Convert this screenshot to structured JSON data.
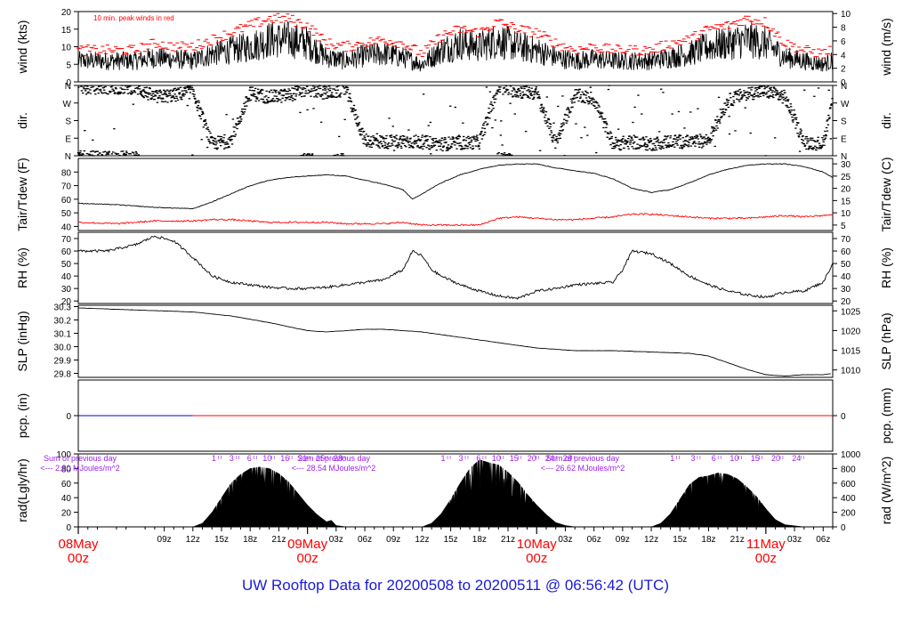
{
  "footer": {
    "title": "UW Rooftop Data for 20200508  to  20200511 @ 06:56:42  (UTC)"
  },
  "colors": {
    "axes": "#000000",
    "peak": "#ff0000",
    "annotation": "#a020f0",
    "footer": "#1a1adb",
    "date": "#ff0000",
    "precip": "#0000cc"
  },
  "x_axis": {
    "hour_ticks": [
      {
        "t": 9,
        "label": "09z"
      },
      {
        "t": 12,
        "label": "12z"
      },
      {
        "t": 15,
        "label": "15z"
      },
      {
        "t": 18,
        "label": "18z"
      },
      {
        "t": 21,
        "label": "21z"
      },
      {
        "t": 27,
        "label": "03z"
      },
      {
        "t": 30,
        "label": "06z"
      },
      {
        "t": 33,
        "label": "09z"
      },
      {
        "t": 36,
        "label": "12z"
      },
      {
        "t": 39,
        "label": "15z"
      },
      {
        "t": 42,
        "label": "18z"
      },
      {
        "t": 45,
        "label": "21z"
      },
      {
        "t": 51,
        "label": "03z"
      },
      {
        "t": 54,
        "label": "06z"
      },
      {
        "t": 57,
        "label": "09z"
      },
      {
        "t": 60,
        "label": "12z"
      },
      {
        "t": 63,
        "label": "15z"
      },
      {
        "t": 66,
        "label": "18z"
      },
      {
        "t": 69,
        "label": "21z"
      },
      {
        "t": 75,
        "label": "03z"
      },
      {
        "t": 78,
        "label": "06z"
      }
    ],
    "date_ticks": [
      {
        "t": 0,
        "day": "08May",
        "time": "00z"
      },
      {
        "t": 24,
        "day": "09May",
        "time": "00z"
      },
      {
        "t": 48,
        "day": "10May",
        "time": "00z"
      },
      {
        "t": 72,
        "day": "11May",
        "time": "00z"
      }
    ]
  },
  "panels": {
    "wind": {
      "ylabel": "wind (kts)",
      "ylabel2": "wind (m/s)",
      "note": "10 min. peak winds in red"
    },
    "dir": {
      "ylabel": "dir.",
      "ylabel2": "dir."
    },
    "temp": {
      "ylabel": "Tair/Tdew (F)",
      "ylabel2": "Tair/Tdew (C)"
    },
    "rh": {
      "ylabel": "RH (%)",
      "ylabel2": "RH (%)"
    },
    "slp": {
      "ylabel": "SLP (inHg)",
      "ylabel2": "SLP (hPa)"
    },
    "pcp": {
      "ylabel": "pcp. (in)",
      "ylabel2": "pcp. (mm)"
    },
    "rad": {
      "ylabel": "rad(Lgly/hr)",
      "ylabel2": "rad (W/m^2)"
    }
  },
  "rad_notes": [
    {
      "line1": "Sum of previous day",
      "line2": "<--- 2.80 MJoules/m^2"
    },
    {
      "line1": "Sum of previous day",
      "line2": "<--- 28.54 MJoules/m^2"
    },
    {
      "line1": "Sum of previous day",
      "line2": "<--- 26.62 MJoules/m^2"
    }
  ],
  "sun_marks": [
    {
      "day_start": 12,
      "labels": [
        "1",
        "3",
        "6",
        "10",
        "16",
        "21",
        "25",
        "28"
      ]
    },
    {
      "day_start": 36,
      "labels": [
        "1",
        "3",
        "6",
        "10",
        "15",
        "20",
        "24",
        "26"
      ]
    },
    {
      "day_start": 60,
      "labels": [
        "1",
        "3",
        "6",
        "10",
        "15",
        "20",
        "24"
      ]
    }
  ],
  "chart_data": [
    {
      "type": "line",
      "name": "wind",
      "ylim": [
        0,
        20
      ],
      "yticks": [
        0,
        5,
        10,
        15,
        20
      ],
      "yticks2": [
        0,
        2,
        4,
        6,
        8,
        10
      ],
      "x": [
        6,
        8,
        10,
        12,
        14,
        16,
        18,
        20,
        22,
        24,
        26,
        28,
        30,
        32,
        34,
        36,
        38,
        40,
        42,
        44,
        46,
        48,
        50,
        52,
        54,
        56,
        58,
        60,
        62,
        64,
        66,
        68,
        70,
        72,
        74,
        76,
        78,
        79
      ],
      "values": [
        6,
        7,
        6.5,
        6,
        8,
        9,
        10,
        12,
        12,
        11,
        7,
        6,
        7.5,
        8,
        7,
        5,
        9,
        11,
        10,
        12,
        10,
        9,
        7,
        6,
        6.5,
        6,
        6,
        6,
        7,
        8,
        10,
        11,
        12,
        11,
        7,
        6,
        5,
        6
      ],
      "peaks": [
        9,
        11,
        10,
        10,
        12,
        14,
        16,
        18,
        18,
        16,
        11,
        10,
        11,
        12,
        11,
        8,
        13,
        15,
        14,
        17,
        15,
        14,
        11,
        9,
        10,
        9,
        9,
        9,
        11,
        12,
        15,
        16,
        18,
        17,
        11,
        9,
        8,
        9
      ]
    },
    {
      "type": "scatter",
      "name": "dir",
      "yticks": [
        "N",
        "E",
        "S",
        "W",
        "N"
      ],
      "ylim": [
        0,
        360
      ],
      "x": [
        6,
        8,
        10,
        12,
        14,
        16,
        18,
        20,
        22,
        24,
        26,
        28,
        30,
        32,
        34,
        36,
        38,
        40,
        42,
        44,
        46,
        48,
        50,
        52,
        54,
        56,
        58,
        60,
        62,
        64,
        66,
        68,
        70,
        72,
        74,
        76,
        78,
        79
      ],
      "values": [
        350,
        300,
        310,
        330,
        60,
        80,
        320,
        300,
        310,
        340,
        320,
        340,
        80,
        70,
        75,
        70,
        60,
        65,
        70,
        350,
        330,
        320,
        60,
        310,
        290,
        60,
        70,
        60,
        75,
        70,
        80,
        280,
        320,
        330,
        300,
        70,
        60,
        290
      ]
    },
    {
      "type": "line",
      "name": "temp",
      "ylim": [
        37,
        90
      ],
      "yticks": [
        40,
        50,
        60,
        70,
        80
      ],
      "yticks2": [
        5,
        10,
        15,
        20,
        25,
        30
      ],
      "x": [
        0,
        4,
        8,
        12,
        14,
        16,
        18,
        20,
        22,
        24,
        26,
        28,
        30,
        32,
        34,
        35,
        36,
        38,
        40,
        42,
        44,
        46,
        48,
        50,
        52,
        54,
        56,
        58,
        60,
        62,
        64,
        66,
        68,
        70,
        72,
        74,
        76,
        78,
        79
      ],
      "series": [
        {
          "name": "Tair",
          "values": [
            57,
            56,
            54,
            53,
            58,
            64,
            70,
            74,
            76,
            77,
            78,
            77,
            74,
            71,
            67,
            60,
            64,
            72,
            78,
            82,
            85,
            86,
            86,
            83,
            81,
            79,
            75,
            68,
            65,
            67,
            72,
            78,
            82,
            85,
            86,
            86,
            84,
            80,
            76
          ]
        },
        {
          "name": "Tdew",
          "values": [
            43,
            42,
            44,
            44,
            45,
            45,
            44,
            43,
            43,
            43,
            43,
            42,
            42,
            42,
            43,
            42,
            41,
            41,
            41,
            41,
            46,
            47,
            46,
            45,
            45,
            46,
            47,
            49,
            49,
            48,
            47,
            46,
            46,
            46,
            47,
            48,
            47,
            48,
            49
          ]
        }
      ]
    },
    {
      "type": "line",
      "name": "rh",
      "ylim": [
        18,
        75
      ],
      "yticks": [
        20,
        30,
        40,
        50,
        60,
        70
      ],
      "yticks2": [
        20,
        30,
        40,
        50,
        60,
        70
      ],
      "x": [
        0,
        3,
        6,
        8,
        10,
        12,
        14,
        16,
        18,
        20,
        22,
        24,
        26,
        28,
        30,
        32,
        34,
        35,
        36,
        37,
        38,
        40,
        42,
        44,
        46,
        48,
        50,
        52,
        54,
        56,
        57,
        58,
        60,
        62,
        64,
        66,
        68,
        70,
        72,
        74,
        76,
        78,
        79
      ],
      "values": [
        60,
        60,
        65,
        72,
        68,
        55,
        40,
        35,
        33,
        31,
        30,
        30,
        31,
        33,
        35,
        37,
        45,
        60,
        56,
        45,
        40,
        33,
        28,
        24,
        22,
        28,
        30,
        33,
        34,
        35,
        45,
        60,
        58,
        50,
        40,
        33,
        28,
        25,
        23,
        27,
        28,
        35,
        50
      ]
    },
    {
      "type": "line",
      "name": "slp",
      "ylim": [
        29.77,
        30.31
      ],
      "yticks": [
        29.8,
        29.9,
        30.0,
        30.1,
        30.2,
        30.3
      ],
      "yticks2": [
        1010,
        1015,
        1020,
        1025
      ],
      "x": [
        0,
        4,
        8,
        12,
        16,
        20,
        24,
        26,
        28,
        30,
        32,
        34,
        36,
        40,
        44,
        48,
        52,
        56,
        60,
        64,
        66,
        68,
        70,
        72,
        74,
        76,
        78,
        79
      ],
      "values": [
        30.29,
        30.28,
        30.27,
        30.26,
        30.23,
        30.18,
        30.12,
        30.11,
        30.12,
        30.13,
        30.13,
        30.12,
        30.11,
        30.07,
        30.03,
        29.99,
        29.97,
        29.97,
        29.96,
        29.95,
        29.93,
        29.88,
        29.83,
        29.79,
        29.78,
        29.79,
        29.79,
        29.8
      ]
    },
    {
      "type": "line",
      "name": "pcp",
      "ylim": [
        -1,
        1
      ],
      "yticks": [
        0
      ],
      "yticks2": [
        0
      ],
      "x": [
        0,
        12,
        79
      ],
      "values": [
        0,
        0,
        0
      ]
    },
    {
      "type": "area",
      "name": "rad",
      "ylim": [
        0,
        100
      ],
      "yticks": [
        0,
        20,
        40,
        60,
        80,
        100
      ],
      "yticks2": [
        0,
        200,
        400,
        600,
        800,
        1000
      ],
      "x": [
        12,
        13,
        14,
        15,
        16,
        17,
        18,
        19,
        20,
        21,
        22,
        23,
        24,
        25,
        26,
        26.5,
        27,
        28,
        36,
        37,
        38,
        39,
        40,
        41,
        42,
        43,
        44,
        45,
        46,
        47,
        48,
        49,
        50,
        51,
        52,
        60,
        61,
        62,
        63,
        64,
        65,
        66,
        67,
        68,
        69,
        70,
        71,
        72,
        73,
        74,
        76
      ],
      "values": [
        0,
        5,
        20,
        40,
        60,
        72,
        80,
        82,
        80,
        73,
        62,
        46,
        30,
        17,
        7,
        9,
        2,
        0,
        0,
        5,
        18,
        38,
        60,
        80,
        92,
        88,
        85,
        75,
        62,
        45,
        30,
        17,
        6,
        2,
        0,
        0,
        5,
        18,
        38,
        58,
        68,
        70,
        74,
        72,
        66,
        55,
        42,
        25,
        10,
        3,
        0
      ]
    }
  ]
}
